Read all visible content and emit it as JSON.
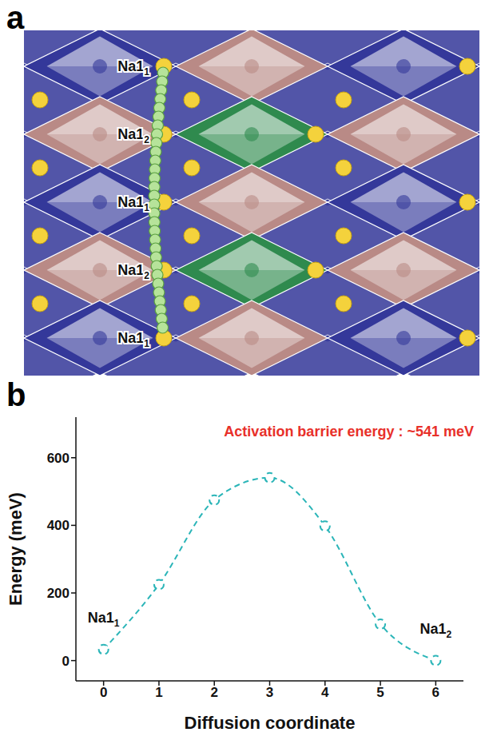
{
  "diagram": {
    "letter": "a",
    "site_labels": [
      {
        "text": "Na1",
        "sub": "1"
      },
      {
        "text": "Na1",
        "sub": "2"
      },
      {
        "text": "Na1",
        "sub": "1"
      },
      {
        "text": "Na1",
        "sub": "2"
      },
      {
        "text": "Na1",
        "sub": "1"
      }
    ]
  },
  "chart_data": {
    "type": "line",
    "panel": "b",
    "annotation": "Activation barrier energy : ~541 meV",
    "annotation_color": "#e8302a",
    "x_label": "Diffusion coordinate",
    "y_label": "Energy (meV)",
    "x": [
      0,
      1,
      2,
      3,
      4,
      5,
      6
    ],
    "values": [
      33,
      225,
      475,
      541,
      398,
      108,
      0
    ],
    "color": "#2bb5b8",
    "marker": "o",
    "line_style": "dashed",
    "point_labels": [
      {
        "x": 0,
        "text": "Na1",
        "sub": "1"
      },
      {
        "x": 6,
        "text": "Na1",
        "sub": "2"
      }
    ],
    "xlim": [
      -0.5,
      6.5
    ],
    "xticks": [
      0,
      1,
      2,
      3,
      4,
      5,
      6
    ],
    "ylim": [
      -60,
      720
    ],
    "yticks": [
      0,
      200,
      400,
      600
    ],
    "grid": false
  }
}
